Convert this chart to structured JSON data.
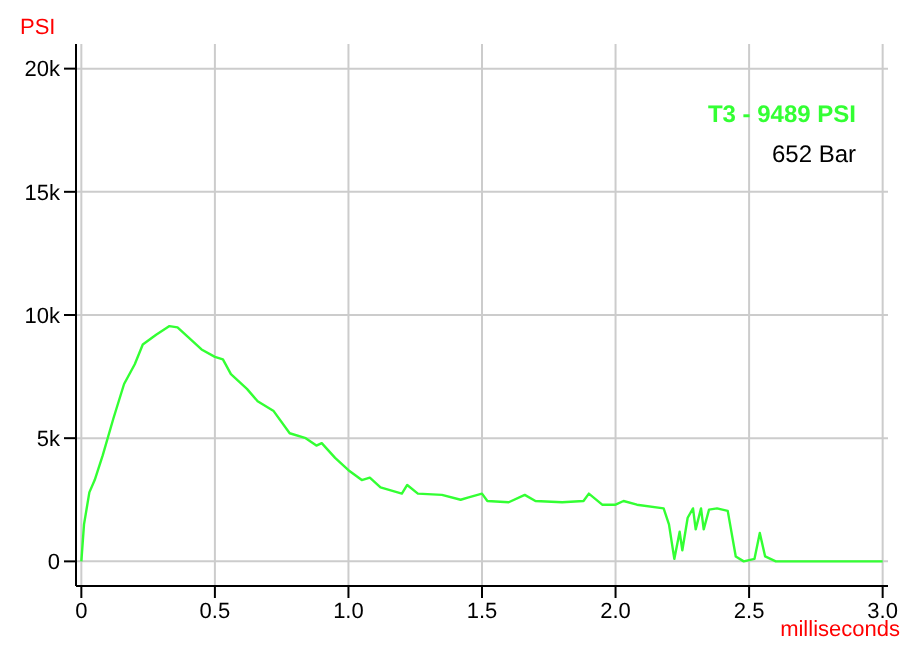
{
  "chart_data": {
    "type": "line",
    "xlabel": "milliseconds",
    "ylabel": "PSI",
    "annotations": [
      "T3 -  9489 PSI",
      "652 Bar"
    ],
    "series": [
      {
        "color": "#33ff33",
        "x": [
          0,
          0.01,
          0.03,
          0.05,
          0.08,
          0.12,
          0.16,
          0.2,
          0.23,
          0.28,
          0.33,
          0.36,
          0.4,
          0.45,
          0.5,
          0.53,
          0.56,
          0.62,
          0.66,
          0.72,
          0.78,
          0.84,
          0.88,
          0.9,
          0.95,
          1.0,
          1.05,
          1.08,
          1.12,
          1.2,
          1.22,
          1.26,
          1.35,
          1.42,
          1.45,
          1.5,
          1.52,
          1.6,
          1.66,
          1.7,
          1.8,
          1.88,
          1.9,
          1.95,
          2.0,
          2.03,
          2.08,
          2.18,
          2.2,
          2.22,
          2.24,
          2.25,
          2.27,
          2.29,
          2.3,
          2.32,
          2.33,
          2.35,
          2.38,
          2.42,
          2.45,
          2.48,
          2.52,
          2.54,
          2.56,
          2.6,
          3.0
        ],
        "values": [
          0,
          1500,
          2800,
          3300,
          4300,
          5800,
          7200,
          8000,
          8800,
          9200,
          9550,
          9500,
          9100,
          8600,
          8300,
          8200,
          7600,
          7000,
          6500,
          6100,
          5200,
          5000,
          4700,
          4800,
          4200,
          3700,
          3300,
          3400,
          3000,
          2750,
          3100,
          2750,
          2700,
          2500,
          2600,
          2750,
          2450,
          2400,
          2700,
          2450,
          2400,
          2450,
          2750,
          2300,
          2300,
          2450,
          2300,
          2150,
          1500,
          100,
          1200,
          450,
          1770,
          2150,
          1300,
          2150,
          1300,
          2100,
          2150,
          2050,
          200,
          0,
          100,
          1150,
          200,
          0,
          0
        ]
      }
    ],
    "xlim": [
      -0.02,
      3.02
    ],
    "ylim": [
      -1000,
      21000
    ],
    "xticks": [
      0,
      0.5,
      {
        "value": 1,
        "label": "1.0"
      },
      1.5,
      {
        "value": 2,
        "label": "2.0"
      },
      2.5,
      {
        "value": 3,
        "label": "3.0"
      }
    ],
    "yticks": [
      0,
      {
        "value": 5000,
        "label": "5k"
      },
      {
        "value": 10000,
        "label": "10k"
      },
      {
        "value": 15000,
        "label": "15k"
      },
      {
        "value": 20000,
        "label": "20k"
      }
    ],
    "grid": true,
    "legend": false,
    "marker": "none",
    "line_style": "solid"
  }
}
